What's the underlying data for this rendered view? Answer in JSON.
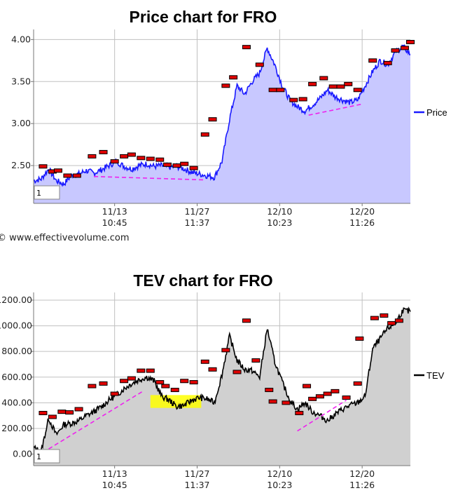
{
  "watermark": "© www.effectivevolume.com",
  "colors": {
    "price_line": "#1a1aff",
    "price_fill": "#c8c8ff",
    "tev_line": "#000000",
    "tev_fill": "#d0d0d0",
    "marker": "#e00000",
    "trend": "#ee22ee",
    "highlight": "#ffff00",
    "grid": "#c0c0c0"
  },
  "chart_data": [
    {
      "type": "area",
      "title": "Price chart for FRO",
      "legend": "Price",
      "legend_position": "right",
      "grid": true,
      "box_label": "1",
      "x_ticks": [
        {
          "date": "11/13",
          "time": "10:45"
        },
        {
          "date": "11/27",
          "time": "11:37"
        },
        {
          "date": "12/10",
          "time": "10:23"
        },
        {
          "date": "12/20",
          "time": "11:26"
        }
      ],
      "y_ticks": [
        "2.50",
        "3.00",
        "3.50",
        "4.00"
      ],
      "ylim": [
        2.05,
        4.12
      ],
      "series": [
        {
          "x": [
            0,
            2,
            4,
            6,
            8,
            10,
            12,
            14,
            16,
            18,
            20,
            22,
            24,
            26,
            28,
            30,
            32,
            34,
            36,
            38,
            40,
            42,
            44,
            46,
            48,
            50,
            52,
            54,
            56,
            58,
            60,
            62,
            64,
            66,
            68,
            70,
            72,
            74,
            76,
            78,
            80,
            82,
            84,
            86,
            88,
            90,
            92,
            94,
            96,
            98,
            100
          ],
          "values": [
            2.32,
            2.34,
            2.46,
            2.32,
            2.28,
            2.38,
            2.4,
            2.44,
            2.41,
            2.45,
            2.5,
            2.55,
            2.49,
            2.46,
            2.5,
            2.52,
            2.49,
            2.5,
            2.48,
            2.49,
            2.46,
            2.42,
            2.4,
            2.38,
            2.36,
            2.55,
            3.05,
            3.45,
            3.35,
            3.5,
            3.6,
            3.9,
            3.7,
            3.45,
            3.28,
            3.2,
            3.15,
            3.22,
            3.3,
            3.4,
            3.32,
            3.28,
            3.25,
            3.28,
            3.45,
            3.62,
            3.75,
            3.7,
            3.85,
            3.92,
            3.82
          ]
        }
      ],
      "markers": [
        {
          "x": 2.5,
          "y": 2.49
        },
        {
          "x": 5,
          "y": 2.43
        },
        {
          "x": 6.5,
          "y": 2.44
        },
        {
          "x": 9,
          "y": 2.38
        },
        {
          "x": 11.5,
          "y": 2.38
        },
        {
          "x": 15.5,
          "y": 2.61
        },
        {
          "x": 18.5,
          "y": 2.66
        },
        {
          "x": 21.5,
          "y": 2.55
        },
        {
          "x": 24,
          "y": 2.61
        },
        {
          "x": 26,
          "y": 2.63
        },
        {
          "x": 28.5,
          "y": 2.59
        },
        {
          "x": 31,
          "y": 2.58
        },
        {
          "x": 33.5,
          "y": 2.57
        },
        {
          "x": 35.5,
          "y": 2.51
        },
        {
          "x": 38,
          "y": 2.5
        },
        {
          "x": 40,
          "y": 2.52
        },
        {
          "x": 42.5,
          "y": 2.47
        },
        {
          "x": 45.5,
          "y": 2.87
        },
        {
          "x": 47.5,
          "y": 3.05
        },
        {
          "x": 51,
          "y": 3.45
        },
        {
          "x": 53,
          "y": 3.55
        },
        {
          "x": 56.5,
          "y": 3.91
        },
        {
          "x": 60,
          "y": 3.7
        },
        {
          "x": 63.5,
          "y": 3.4
        },
        {
          "x": 65.5,
          "y": 3.4
        },
        {
          "x": 69,
          "y": 3.28
        },
        {
          "x": 71.5,
          "y": 3.29
        },
        {
          "x": 74,
          "y": 3.47
        },
        {
          "x": 77,
          "y": 3.54
        },
        {
          "x": 79.5,
          "y": 3.44
        },
        {
          "x": 81.5,
          "y": 3.44
        },
        {
          "x": 83.5,
          "y": 3.47
        },
        {
          "x": 86,
          "y": 3.4
        },
        {
          "x": 90,
          "y": 3.75
        },
        {
          "x": 94,
          "y": 3.72
        },
        {
          "x": 96,
          "y": 3.87
        },
        {
          "x": 98.5,
          "y": 3.9
        },
        {
          "x": 100,
          "y": 3.97
        }
      ],
      "trendlines": [
        {
          "x1": 16,
          "y1": 2.37,
          "x2": 45,
          "y2": 2.33
        },
        {
          "x1": 73,
          "y1": 3.1,
          "x2": 87,
          "y2": 3.23
        }
      ]
    },
    {
      "type": "area",
      "title": "TEV chart for FRO",
      "legend": "TEV",
      "legend_position": "right",
      "grid": true,
      "box_label": "1",
      "x_ticks": [
        {
          "date": "11/13",
          "time": "10:45"
        },
        {
          "date": "11/27",
          "time": "11:37"
        },
        {
          "date": "12/10",
          "time": "10:23"
        },
        {
          "date": "12/20",
          "time": "11:26"
        }
      ],
      "y_ticks": [
        "0.00",
        "200.00",
        "400.00",
        "600.00",
        "800.00",
        "1000.00",
        "1200.00"
      ],
      "ylim": [
        -90,
        1260
      ],
      "series": [
        {
          "x": [
            0,
            2,
            4,
            6,
            8,
            10,
            12,
            14,
            16,
            18,
            20,
            22,
            24,
            26,
            28,
            30,
            32,
            34,
            36,
            38,
            40,
            42,
            44,
            46,
            48,
            50,
            52,
            54,
            56,
            58,
            60,
            62,
            64,
            66,
            68,
            70,
            72,
            74,
            76,
            78,
            80,
            82,
            84,
            86,
            88,
            90,
            92,
            94,
            96,
            98,
            100
          ],
          "values": [
            50,
            20,
            280,
            150,
            230,
            240,
            260,
            300,
            330,
            370,
            420,
            460,
            510,
            550,
            580,
            600,
            570,
            450,
            420,
            370,
            380,
            420,
            440,
            430,
            400,
            620,
            920,
            730,
            660,
            650,
            600,
            980,
            720,
            560,
            420,
            350,
            400,
            330,
            300,
            260,
            310,
            350,
            380,
            400,
            450,
            820,
            900,
            980,
            1020,
            1120,
            1110
          ]
        }
      ],
      "markers": [
        {
          "x": 2.5,
          "y": 320
        },
        {
          "x": 5,
          "y": 290
        },
        {
          "x": 7.5,
          "y": 330
        },
        {
          "x": 9.5,
          "y": 325
        },
        {
          "x": 12,
          "y": 350
        },
        {
          "x": 15.5,
          "y": 530
        },
        {
          "x": 18.5,
          "y": 550
        },
        {
          "x": 21.5,
          "y": 470
        },
        {
          "x": 24,
          "y": 570
        },
        {
          "x": 26,
          "y": 590
        },
        {
          "x": 28.5,
          "y": 650
        },
        {
          "x": 31,
          "y": 650
        },
        {
          "x": 33.5,
          "y": 560
        },
        {
          "x": 35,
          "y": 530
        },
        {
          "x": 37.5,
          "y": 500
        },
        {
          "x": 40,
          "y": 570
        },
        {
          "x": 42.5,
          "y": 560
        },
        {
          "x": 45.5,
          "y": 720
        },
        {
          "x": 47.5,
          "y": 660
        },
        {
          "x": 51,
          "y": 810
        },
        {
          "x": 54,
          "y": 640
        },
        {
          "x": 56.5,
          "y": 1040
        },
        {
          "x": 59,
          "y": 730
        },
        {
          "x": 62.5,
          "y": 500
        },
        {
          "x": 63.5,
          "y": 410
        },
        {
          "x": 67,
          "y": 400
        },
        {
          "x": 70.5,
          "y": 320
        },
        {
          "x": 72.5,
          "y": 530
        },
        {
          "x": 74,
          "y": 430
        },
        {
          "x": 76,
          "y": 450
        },
        {
          "x": 78,
          "y": 470
        },
        {
          "x": 80,
          "y": 490
        },
        {
          "x": 83,
          "y": 440
        },
        {
          "x": 86,
          "y": 550
        },
        {
          "x": 86.5,
          "y": 900
        },
        {
          "x": 90.5,
          "y": 1060
        },
        {
          "x": 93,
          "y": 1080
        },
        {
          "x": 95,
          "y": 1020
        },
        {
          "x": 97,
          "y": 1040
        }
      ],
      "highlight": {
        "x1": 31,
        "x2": 44.5,
        "y1": 360,
        "y2": 460
      },
      "trendlines": [
        {
          "x1": 4,
          "y1": 40,
          "x2": 29,
          "y2": 490
        },
        {
          "x1": 70,
          "y1": 180,
          "x2": 83,
          "y2": 420
        }
      ]
    }
  ]
}
